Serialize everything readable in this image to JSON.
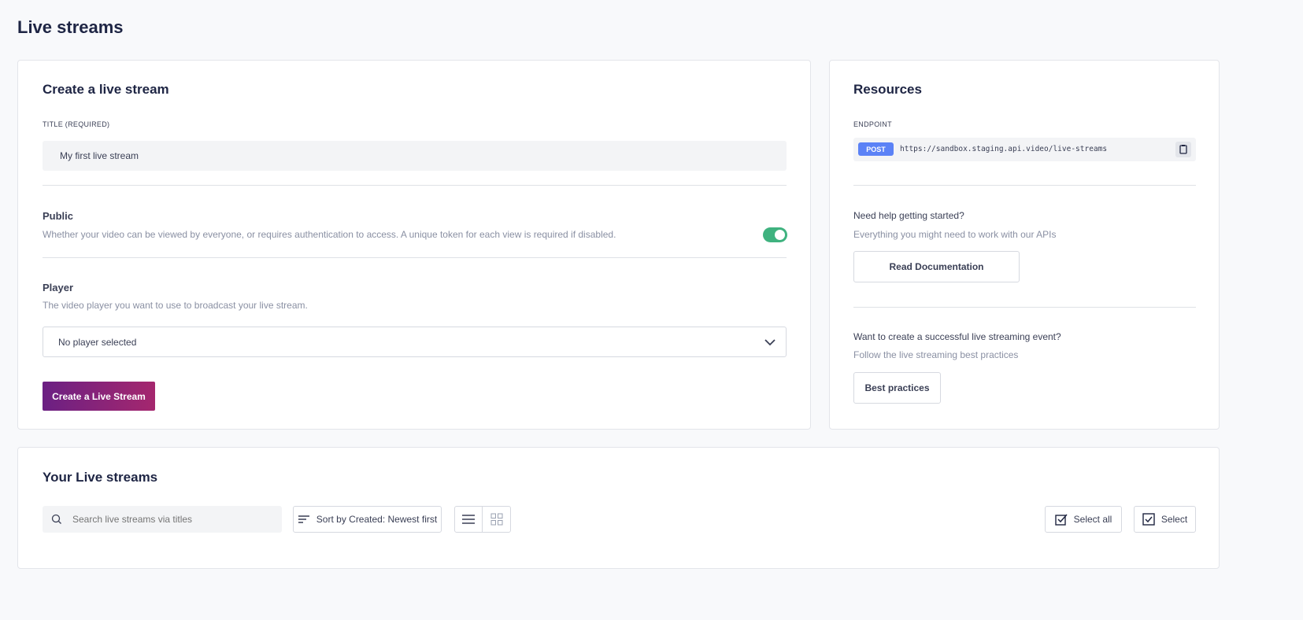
{
  "page": {
    "title": "Live streams"
  },
  "create": {
    "title": "Create a live stream",
    "title_label": "TITLE (REQUIRED)",
    "title_value": "My first live stream",
    "public_label": "Public",
    "public_desc": "Whether your video can be viewed by everyone, or requires authentication to access. A unique token for each view is required if disabled.",
    "public_enabled": true,
    "player_label": "Player",
    "player_desc": "The video player you want to use to broadcast your live stream.",
    "player_value": "No player selected",
    "submit": "Create a Live Stream"
  },
  "resources": {
    "title": "Resources",
    "endpoint_label": "ENDPOINT",
    "method": "POST",
    "url": "https://sandbox.staging.api.video/live-streams",
    "help_title": "Need help getting started?",
    "help_desc": "Everything you might need to work with our APIs",
    "docs_button": "Read Documentation",
    "event_title": "Want to create a successful live streaming event?",
    "event_desc": "Follow the live streaming best practices",
    "practices_button": "Best practices"
  },
  "list": {
    "title": "Your Live streams",
    "search_placeholder": "Search live streams via titles",
    "sort": "Sort by Created: Newest first",
    "select_all": "Select all",
    "select": "Select"
  },
  "colors": {
    "accent": "#5b82f6",
    "toggle": "#3fb27f",
    "primary_start": "#6b2083",
    "primary_end": "#a5276e"
  }
}
